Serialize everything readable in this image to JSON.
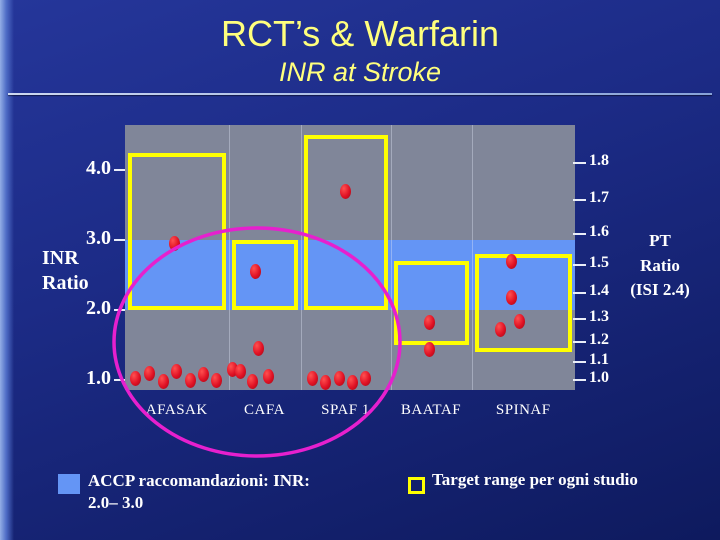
{
  "slide": {
    "title": "RCT’s & Warfarin",
    "subtitle": "INR at Stroke"
  },
  "chart_data": {
    "type": "scatter",
    "title": "RCT’s & Warfarin",
    "subtitle": "INR at Stroke",
    "categories": [
      "AFASAK",
      "CAFA",
      "SPAF 1",
      "BAATAF",
      "SPINAF"
    ],
    "y_axis_left": {
      "label": "INR\nRatio",
      "tick_labels": [
        "4.0",
        "3.0",
        "2.0",
        "1.0"
      ],
      "tick_values": [
        4.0,
        3.0,
        2.0,
        1.0
      ]
    },
    "y_axis_right": {
      "label": "PT\nRatio\n(ISI 2.4)",
      "tick_labels": [
        "1.8",
        "1.7",
        "1.6",
        "1.5",
        "1.4",
        "1.3",
        "1.2",
        "1.1",
        "1.0"
      ],
      "isi": 2.4
    },
    "accp_band_inr": [
      2.0,
      3.0
    ],
    "target_ranges_inr": [
      {
        "study": "AFASAK",
        "range": [
          2.0,
          4.25
        ]
      },
      {
        "study": "CAFA",
        "range": [
          2.0,
          3.0
        ]
      },
      {
        "study": "SPAF 1",
        "range": [
          2.0,
          4.5
        ]
      },
      {
        "study": "BAATAF",
        "range": [
          1.5,
          2.7
        ]
      },
      {
        "study": "SPINAF",
        "range": [
          1.4,
          2.8
        ]
      }
    ],
    "stroke_points_inr": [
      {
        "study": "AFASAK",
        "points": [
          [
            0.48,
            2.95
          ],
          [
            0.1,
            1.02
          ],
          [
            0.24,
            1.1
          ],
          [
            0.37,
            0.98
          ],
          [
            0.5,
            1.12
          ],
          [
            0.63,
            1.0
          ],
          [
            0.76,
            1.08
          ],
          [
            0.88,
            1.0
          ]
        ]
      },
      {
        "study": "CAFA",
        "points": [
          [
            0.05,
            1.15
          ],
          [
            0.38,
            2.55
          ],
          [
            0.42,
            1.45
          ],
          [
            0.17,
            1.12
          ],
          [
            0.34,
            0.98
          ],
          [
            0.56,
            1.05
          ]
        ]
      },
      {
        "study": "SPAF 1",
        "points": [
          [
            0.5,
            3.7
          ],
          [
            0.13,
            1.02
          ],
          [
            0.28,
            0.97
          ],
          [
            0.43,
            1.02
          ],
          [
            0.58,
            0.97
          ],
          [
            0.72,
            1.02
          ]
        ]
      },
      {
        "study": "BAATAF",
        "points": [
          [
            0.48,
            1.82
          ],
          [
            0.48,
            1.43
          ]
        ]
      },
      {
        "study": "SPINAF",
        "points": [
          [
            0.39,
            2.7
          ],
          [
            0.39,
            2.18
          ],
          [
            0.28,
            1.72
          ],
          [
            0.46,
            1.84
          ]
        ]
      }
    ],
    "highlight_ellipse": {
      "color": "#e620ce",
      "covers": "low-INR stroke points under AFASAK, CAFA and SPAF 1"
    },
    "layout": {
      "column_fractions": [
        0,
        0.23,
        0.39,
        0.59,
        0.77,
        1.0
      ],
      "grid": "vertical column separators",
      "legend_position": "bottom"
    }
  },
  "legend": {
    "accp_label": "ACCP raccomandazioni: INR:\n2.0– 3.0",
    "target_label": "Target range per ogni studio"
  },
  "colors": {
    "background_navy": "#1c2b86",
    "title_yellow": "#ffff7d",
    "plot_gray": "#808699",
    "accp_band_blue": "#6495f5",
    "target_box_yellow": "#ffff00",
    "stroke_dot_red": "#e01124",
    "annotation_magenta": "#e620ce",
    "axis_text_white": "#ffffff"
  }
}
